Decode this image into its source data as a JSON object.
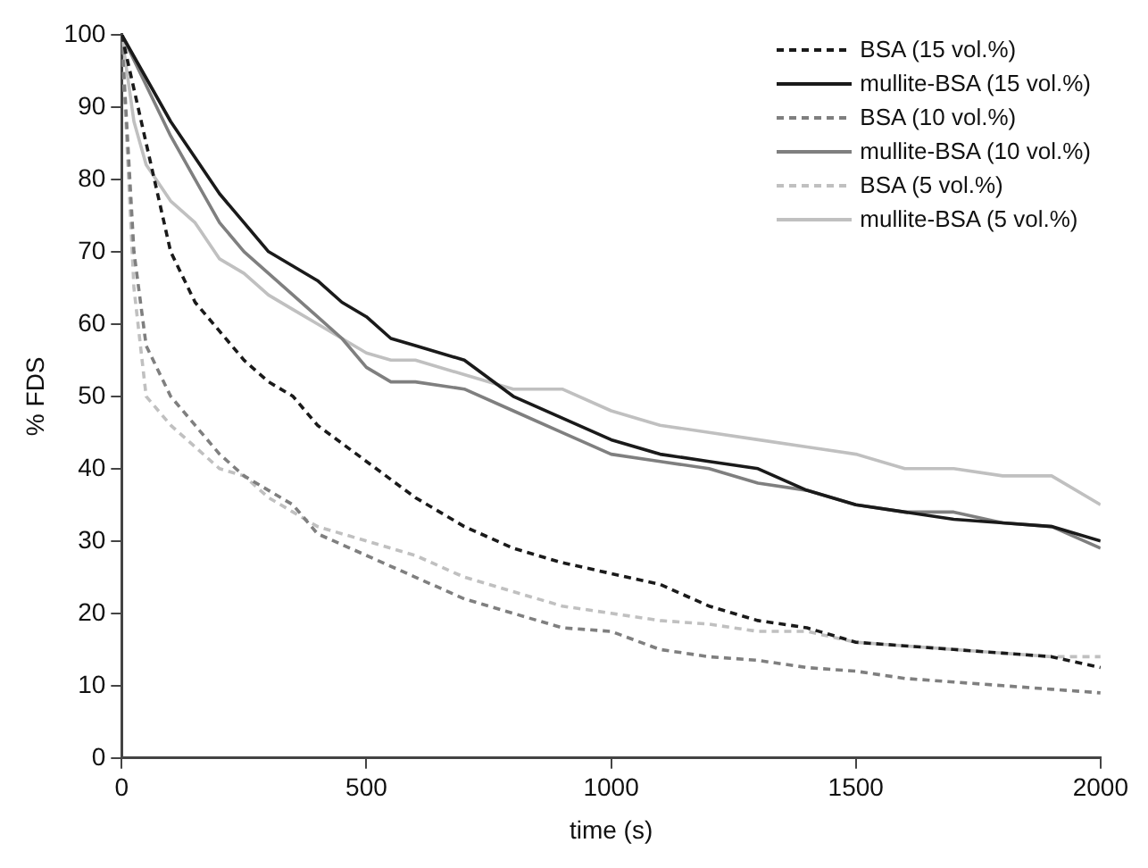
{
  "chart_data": {
    "type": "line",
    "xlabel": "time (s)",
    "ylabel": "% FDS",
    "xlim": [
      0,
      2000
    ],
    "xticks": [
      0,
      500,
      1000,
      1500,
      2000
    ],
    "ylim": [
      0,
      100
    ],
    "yticks": [
      0,
      10,
      20,
      30,
      40,
      50,
      60,
      70,
      80,
      90,
      100
    ],
    "grid": false,
    "legend": "top right",
    "marker": "none",
    "series": [
      {
        "name": "BSA (15 vol.%)",
        "color": "#1a1a1a",
        "line_style": "dashed",
        "x": [
          0,
          50,
          100,
          150,
          200,
          250,
          300,
          350,
          400,
          500,
          600,
          700,
          800,
          900,
          1000,
          1100,
          1200,
          1300,
          1400,
          1500,
          1600,
          1700,
          1800,
          1900,
          2000
        ],
        "values": [
          100,
          85,
          70,
          63,
          59,
          55,
          52,
          50,
          46,
          41,
          36,
          32,
          29,
          27,
          25.5,
          24,
          21,
          19,
          18,
          16,
          15.5,
          15,
          14.5,
          14,
          12.5
        ]
      },
      {
        "name": "mullite-BSA (15 vol.%)",
        "color": "#1a1a1a",
        "line_style": "solid",
        "x": [
          0,
          100,
          150,
          200,
          250,
          300,
          350,
          400,
          450,
          500,
          550,
          600,
          700,
          800,
          900,
          1000,
          1100,
          1200,
          1300,
          1400,
          1500,
          1600,
          1700,
          1800,
          1900,
          2000
        ],
        "values": [
          100,
          88,
          83,
          78,
          74,
          70,
          68,
          66,
          63,
          61,
          58,
          57,
          55,
          50,
          47,
          44,
          42,
          41,
          40,
          37,
          35,
          34,
          33,
          32.5,
          32,
          30
        ]
      },
      {
        "name": "BSA (10 vol.%)",
        "color": "#7f7f7f",
        "line_style": "dashed",
        "x": [
          0,
          25,
          50,
          100,
          150,
          200,
          250,
          300,
          350,
          400,
          500,
          600,
          700,
          800,
          900,
          1000,
          1100,
          1200,
          1300,
          1400,
          1500,
          1600,
          1700,
          1800,
          1900,
          2000
        ],
        "values": [
          100,
          70,
          57,
          50,
          46,
          42,
          39,
          37,
          35,
          31,
          28,
          25,
          22,
          20,
          18,
          17.5,
          15,
          14,
          13.5,
          12.5,
          12,
          11,
          10.5,
          10,
          9.5,
          9
        ]
      },
      {
        "name": "mullite-BSA (10 vol.%)",
        "color": "#7f7f7f",
        "line_style": "solid",
        "x": [
          0,
          100,
          150,
          200,
          250,
          300,
          350,
          400,
          450,
          500,
          550,
          600,
          700,
          800,
          900,
          1000,
          1100,
          1200,
          1300,
          1400,
          1500,
          1600,
          1700,
          1800,
          1900,
          2000
        ],
        "values": [
          100,
          86,
          80,
          74,
          70,
          67,
          64,
          61,
          58,
          54,
          52,
          52,
          51,
          48,
          45,
          42,
          41,
          40,
          38,
          37,
          35,
          34,
          34,
          32.5,
          32,
          29
        ]
      },
      {
        "name": "BSA (5 vol.%)",
        "color": "#c0c0c0",
        "line_style": "dashed",
        "x": [
          0,
          25,
          50,
          100,
          150,
          200,
          250,
          300,
          350,
          400,
          500,
          600,
          700,
          800,
          900,
          1000,
          1100,
          1200,
          1300,
          1400,
          1500,
          1600,
          1700,
          1800,
          1900,
          2000
        ],
        "values": [
          100,
          65,
          50,
          46,
          43,
          40,
          39,
          36,
          34,
          32,
          30,
          28,
          25,
          23,
          21,
          20,
          19,
          18.5,
          17.5,
          17.5,
          16,
          15.5,
          15,
          14.5,
          14,
          14
        ]
      },
      {
        "name": "mullite-BSA (5 vol.%)",
        "color": "#c0c0c0",
        "line_style": "solid",
        "x": [
          0,
          25,
          50,
          100,
          150,
          200,
          250,
          300,
          350,
          400,
          450,
          500,
          550,
          600,
          700,
          800,
          900,
          1000,
          1100,
          1200,
          1300,
          1400,
          1500,
          1600,
          1700,
          1800,
          1900,
          2000
        ],
        "values": [
          100,
          88,
          82,
          77,
          74,
          69,
          67,
          64,
          62,
          60,
          58,
          56,
          55,
          55,
          53,
          51,
          51,
          48,
          46,
          45,
          44,
          43,
          42,
          40,
          40,
          39,
          39,
          35
        ]
      }
    ]
  }
}
